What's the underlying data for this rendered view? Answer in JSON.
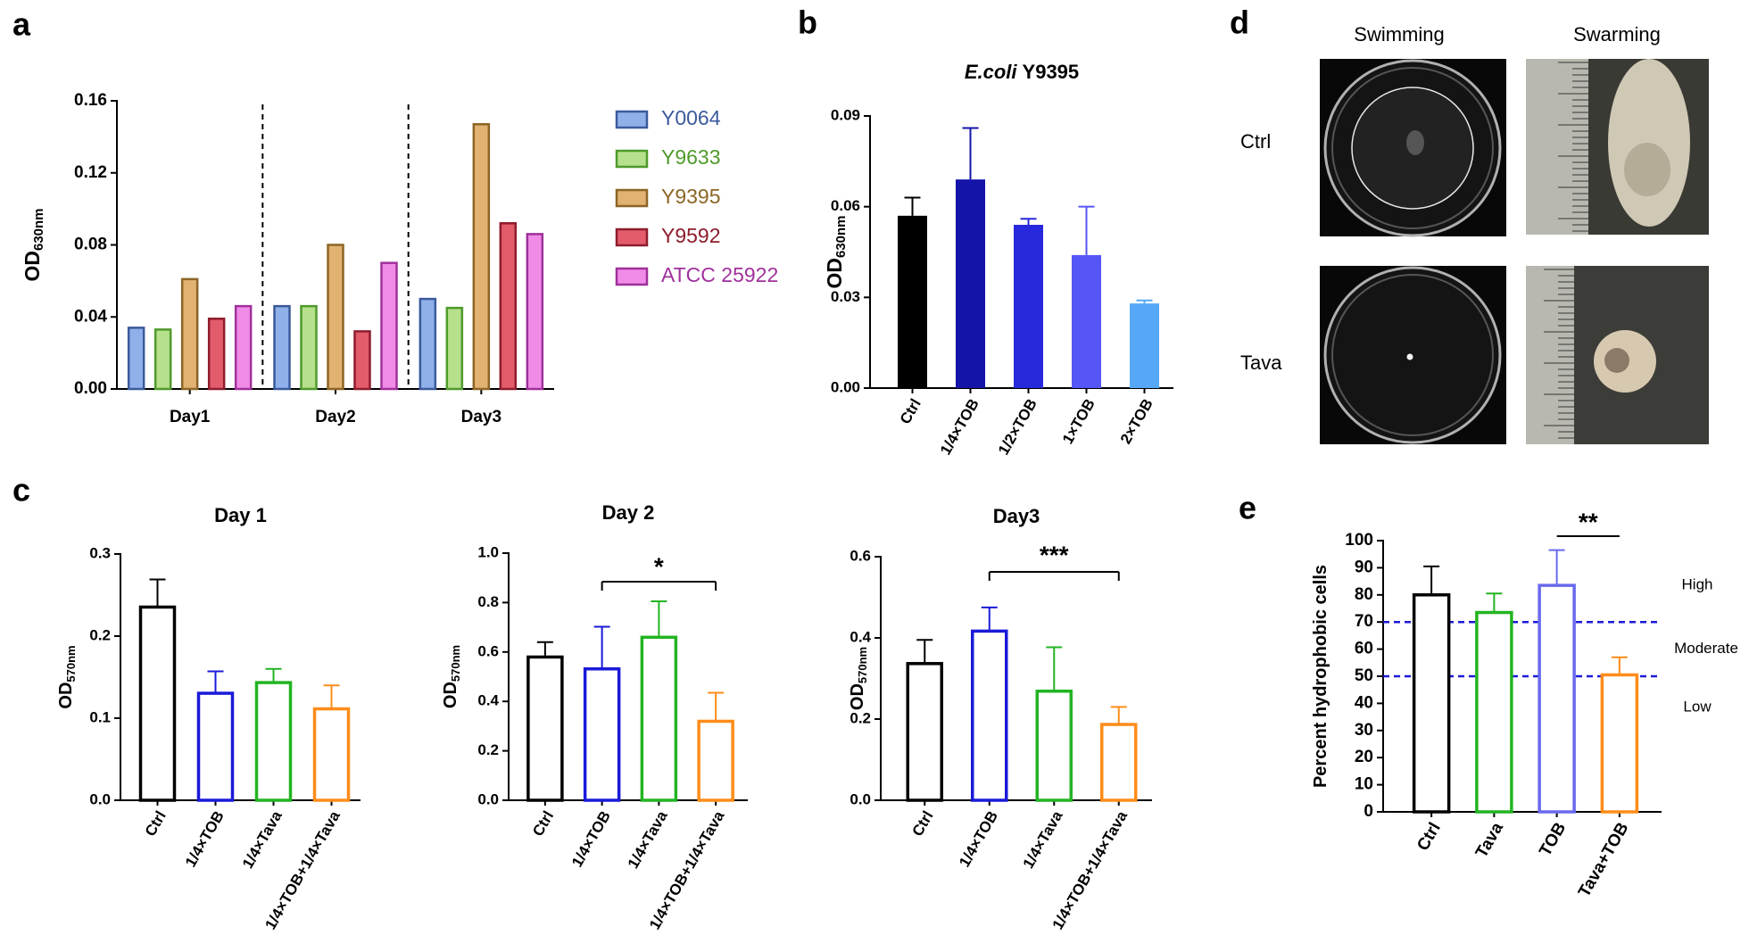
{
  "panel_labels": [
    "a",
    "b",
    "c",
    "d",
    "e"
  ],
  "panel_d": {
    "columns": [
      "Swimming",
      "Swarming"
    ],
    "rows": [
      "Ctrl",
      "Tava"
    ]
  },
  "chart_data": [
    {
      "type": "bar",
      "ylabel": "OD",
      "ylabel_subscript": "630nm",
      "categories": [
        "Day1",
        "Day2",
        "Day3"
      ],
      "series": [
        {
          "name": "Y0064",
          "color": "#3b5a9c",
          "fill": "#8fb0e8",
          "values": [
            0.034,
            0.046,
            0.05
          ]
        },
        {
          "name": "Y9633",
          "color": "#4f9a2c",
          "fill": "#b6e08c",
          "values": [
            0.033,
            0.046,
            0.045
          ]
        },
        {
          "name": "Y9395",
          "color": "#8c6526",
          "fill": "#e2b272",
          "values": [
            0.061,
            0.08,
            0.147
          ]
        },
        {
          "name": "Y9592",
          "color": "#8e1c2c",
          "fill": "#e25c6c",
          "values": [
            0.039,
            0.032,
            0.092
          ]
        },
        {
          "name": "ATCC 25922",
          "color": "#a0309c",
          "fill": "#f08ce8",
          "values": [
            0.046,
            0.07,
            0.086
          ]
        }
      ],
      "ylim": [
        0,
        0.16
      ],
      "yticks": [
        {
          "value": 0,
          "label": "0.00"
        },
        0.04,
        0.08,
        0.12,
        0.16
      ]
    },
    {
      "type": "bar",
      "title_italic": "E.coli",
      "title": "Y9395",
      "ylabel": "OD",
      "ylabel_subscript": "630nm",
      "categories": [
        "Ctrl",
        "1/4×TOB",
        "1/2×TOB",
        "1×TOB",
        "2×TOB"
      ],
      "values": [
        0.057,
        0.069,
        0.054,
        0.044,
        0.028
      ],
      "errors": [
        0.006,
        0.017,
        0.002,
        0.016,
        0.001
      ],
      "colors": [
        "#000000",
        "#1414a8",
        "#2828dc",
        "#5656f6",
        "#56a8f6"
      ],
      "hollow": false,
      "ylim": [
        0,
        0.09
      ],
      "yticks": [
        {
          "value": 0,
          "label": "0.00"
        },
        0.03,
        0.06,
        0.09
      ]
    },
    {
      "type": "bar",
      "title": "Day 1",
      "ylabel": "OD",
      "ylabel_subscript": "570nm",
      "categories": [
        "Ctrl",
        "1/4×TOB",
        "1/4×Tava",
        "1/4×TOB+1/4×Tava"
      ],
      "values": [
        0.237,
        0.132,
        0.145,
        0.113
      ],
      "errors": [
        0.032,
        0.025,
        0.015,
        0.027
      ],
      "colors": [
        "#000000",
        "#1a1ad8",
        "#22b422",
        "#ff8c1a"
      ],
      "hollow": true,
      "ylim": [
        0,
        0.3
      ],
      "yticks": [
        {
          "value": 0,
          "label": "0.0"
        },
        0.1,
        0.2,
        0.3
      ]
    },
    {
      "type": "bar",
      "title": "Day 2",
      "ylabel": "OD",
      "ylabel_subscript": "570nm",
      "categories": [
        "Ctrl",
        "1/4×TOB",
        "1/4×Tava",
        "1/4×TOB+1/4×Tava"
      ],
      "values": [
        0.585,
        0.537,
        0.665,
        0.325
      ],
      "errors": [
        0.055,
        0.165,
        0.14,
        0.11
      ],
      "colors": [
        "#000000",
        "#1a1ad8",
        "#22b422",
        "#ff8c1a"
      ],
      "hollow": true,
      "annotations": [
        "*"
      ],
      "ylim": [
        0,
        1.0
      ],
      "yticks": [
        {
          "value": 0,
          "label": "0.0"
        },
        0.2,
        0.4,
        0.6,
        0.8,
        {
          "value": 1.0,
          "label": "1.0"
        }
      ]
    },
    {
      "type": "bar",
      "title": "Day3",
      "ylabel": "OD",
      "ylabel_subscript": "570nm",
      "categories": [
        "Ctrl",
        "1/4×TOB",
        "1/4×Tava",
        "1/4×TOB+1/4×Tava"
      ],
      "values": [
        0.34,
        0.42,
        0.272,
        0.19
      ],
      "errors": [
        0.055,
        0.055,
        0.105,
        0.04
      ],
      "colors": [
        "#000000",
        "#1a1ad8",
        "#22b422",
        "#ff8c1a"
      ],
      "hollow": true,
      "annotations": [
        "***"
      ],
      "ylim": [
        0,
        0.6
      ],
      "yticks": [
        {
          "value": 0,
          "label": "0.0"
        },
        0.2,
        0.4,
        0.6
      ]
    },
    {
      "type": "bar",
      "ylabel": "Percent hydrophobic cells",
      "categories": [
        "Ctrl",
        "Tava",
        "TOB",
        "Tava+TOB"
      ],
      "values": [
        80.5,
        74,
        84,
        51
      ],
      "errors": [
        10,
        6.5,
        12.5,
        6
      ],
      "colors": [
        "#000000",
        "#22b422",
        "#6a6aee",
        "#ff8c1a"
      ],
      "hollow": true,
      "annotations": [
        "**"
      ],
      "hlines": [
        70,
        50
      ],
      "hline_color": "#1a1ad8",
      "zones": [
        "High",
        "Moderate",
        "Low"
      ],
      "ylim": [
        0,
        100
      ],
      "yticks": [
        0,
        10,
        20,
        30,
        40,
        50,
        60,
        70,
        80,
        90,
        100
      ]
    }
  ]
}
